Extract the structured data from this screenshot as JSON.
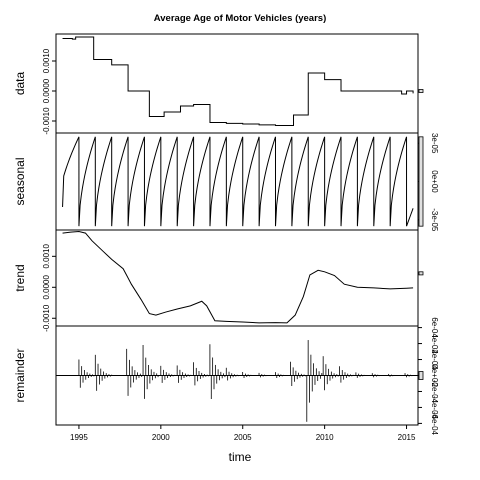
{
  "chart_data": {
    "type": "line",
    "title": "Average Age of Motor Vehicles (years)",
    "xlabel": "time",
    "xlim": [
      1993.6,
      2015.7
    ],
    "x_ticks": [
      1995,
      2000,
      2005,
      2010,
      2015
    ],
    "panels": [
      {
        "name": "data",
        "ylim": [
          -0.0014,
          0.0019
        ],
        "left_ticks": [
          -0.001,
          0.0,
          0.001
        ],
        "left_tick_labels": [
          "-0.0010",
          "0.0000",
          "0.0010"
        ],
        "right_ticks": [],
        "right_tick_labels": [],
        "scale_bar": [
          -5e-05,
          5e-05
        ],
        "series_kind": "step",
        "points": [
          [
            1994.0,
            0.00175
          ],
          [
            1994.6,
            0.00173
          ],
          [
            1994.8,
            0.0018
          ],
          [
            1995.7,
            0.0018
          ],
          [
            1995.9,
            0.00105
          ],
          [
            1996.8,
            0.00105
          ],
          [
            1997.0,
            0.00087
          ],
          [
            1997.8,
            0.00087
          ],
          [
            1998.0,
            0.0
          ],
          [
            1999.2,
            0.0
          ],
          [
            1999.3,
            -0.00085
          ],
          [
            2000.1,
            -0.00085
          ],
          [
            2000.2,
            -0.0007
          ],
          [
            2001.0,
            -0.0007
          ],
          [
            2001.2,
            -0.0005
          ],
          [
            2001.9,
            -0.0005
          ],
          [
            2002.0,
            -0.00045
          ],
          [
            2002.9,
            -0.00045
          ],
          [
            2003.0,
            -0.00105
          ],
          [
            2004.0,
            -0.00108
          ],
          [
            2005.0,
            -0.0011
          ],
          [
            2006.0,
            -0.00113
          ],
          [
            2007.0,
            -0.00115
          ],
          [
            2007.9,
            -0.00115
          ],
          [
            2008.1,
            -0.0008
          ],
          [
            2008.9,
            -0.0008
          ],
          [
            2009.0,
            0.0006
          ],
          [
            2009.9,
            0.0006
          ],
          [
            2010.0,
            0.00038
          ],
          [
            2010.9,
            0.00038
          ],
          [
            2011.0,
            0.0
          ],
          [
            2012.0,
            0.0
          ],
          [
            2013.0,
            0.0
          ],
          [
            2014.5,
            0.0
          ],
          [
            2014.7,
            -0.0001
          ],
          [
            2015.0,
            0.0
          ],
          [
            2015.4,
            -8e-05
          ]
        ]
      },
      {
        "name": "seasonal",
        "ylim": [
          -3.8e-05,
          3.8e-05
        ],
        "left_ticks": [],
        "left_tick_labels": [],
        "right_ticks": [
          3e-05,
          0.0,
          -3e-05
        ],
        "right_tick_labels": [
          "3e-05",
          "0e+00",
          "-3e-05"
        ],
        "scale_bar": [
          -3.5e-05,
          3.5e-05
        ],
        "series_kind": "sawtooth",
        "period": 1,
        "min": -3.5e-05,
        "max": 3.5e-05,
        "start": 1994.0,
        "end": 2015.4,
        "start_value": -2e-05,
        "end_value": -2.1e-05
      },
      {
        "name": "trend",
        "ylim": [
          -0.00125,
          0.00185
        ],
        "left_ticks": [
          -0.001,
          0.0,
          0.001
        ],
        "left_tick_labels": [
          "-0.0010",
          "0.0000",
          "0.0010"
        ],
        "right_ticks": [],
        "right_tick_labels": [],
        "scale_bar": [
          0.0004,
          0.0005
        ],
        "series_kind": "line",
        "points": [
          [
            1994.0,
            0.00175
          ],
          [
            1994.5,
            0.00178
          ],
          [
            1995.0,
            0.0018
          ],
          [
            1995.4,
            0.00175
          ],
          [
            1995.8,
            0.0015
          ],
          [
            1996.5,
            0.00115
          ],
          [
            1997.0,
            0.0009
          ],
          [
            1997.7,
            0.0006
          ],
          [
            1998.2,
            0.0001
          ],
          [
            1998.8,
            -0.0004
          ],
          [
            1999.3,
            -0.00085
          ],
          [
            1999.7,
            -0.0009
          ],
          [
            2000.3,
            -0.0008
          ],
          [
            2001.0,
            -0.0007
          ],
          [
            2001.8,
            -0.0006
          ],
          [
            2002.5,
            -0.00045
          ],
          [
            2002.8,
            -0.0006
          ],
          [
            2003.3,
            -0.00108
          ],
          [
            2004.0,
            -0.0011
          ],
          [
            2005.0,
            -0.00112
          ],
          [
            2006.0,
            -0.00115
          ],
          [
            2007.0,
            -0.00114
          ],
          [
            2007.7,
            -0.00115
          ],
          [
            2008.2,
            -0.0009
          ],
          [
            2008.7,
            -0.0003
          ],
          [
            2009.1,
            0.0004
          ],
          [
            2009.6,
            0.00055
          ],
          [
            2010.0,
            0.0005
          ],
          [
            2010.6,
            0.00038
          ],
          [
            2011.2,
            0.0001
          ],
          [
            2012.0,
            0.0
          ],
          [
            2013.0,
            -2e-05
          ],
          [
            2014.0,
            -5e-05
          ],
          [
            2015.0,
            -3e-05
          ],
          [
            2015.4,
            -2e-05
          ]
        ]
      },
      {
        "name": "remainder",
        "ylim": [
          -0.00062,
          0.00062
        ],
        "left_ticks": [],
        "left_tick_labels": [],
        "right_ticks": [
          0.0006,
          0.0004,
          0.0002,
          0.0,
          -0.0002,
          -0.0004,
          -0.0006
        ],
        "right_tick_labels": [
          "6e-04",
          "4e-04",
          "2e-04",
          "0e+00",
          "-2e-04",
          "-4e-04",
          "-6e-04"
        ],
        "scale_bar": [
          -5e-05,
          5e-05
        ],
        "series_kind": "spikes",
        "step": 0.0833,
        "start": 1994.0,
        "end": 2015.4,
        "events": [
          [
            1995.0,
            0.0002
          ],
          [
            1996.0,
            0.00025
          ],
          [
            1997.9,
            0.00035
          ],
          [
            1998.9,
            0.0004
          ],
          [
            2000.0,
            0.00012
          ],
          [
            2001.0,
            0.00012
          ],
          [
            2002.0,
            0.00016
          ],
          [
            2003.0,
            0.00038
          ],
          [
            2004.0,
            8e-05
          ],
          [
            2005.0,
            4e-05
          ],
          [
            2006.0,
            3e-05
          ],
          [
            2007.0,
            4e-05
          ],
          [
            2007.9,
            0.00018
          ],
          [
            2008.9,
            -0.0006
          ],
          [
            2009.9,
            0.00025
          ],
          [
            2010.9,
            0.00012
          ],
          [
            2011.9,
            4e-05
          ],
          [
            2012.9,
            3e-05
          ],
          [
            2013.9,
            2e-05
          ],
          [
            2014.9,
            3e-05
          ]
        ]
      }
    ]
  }
}
